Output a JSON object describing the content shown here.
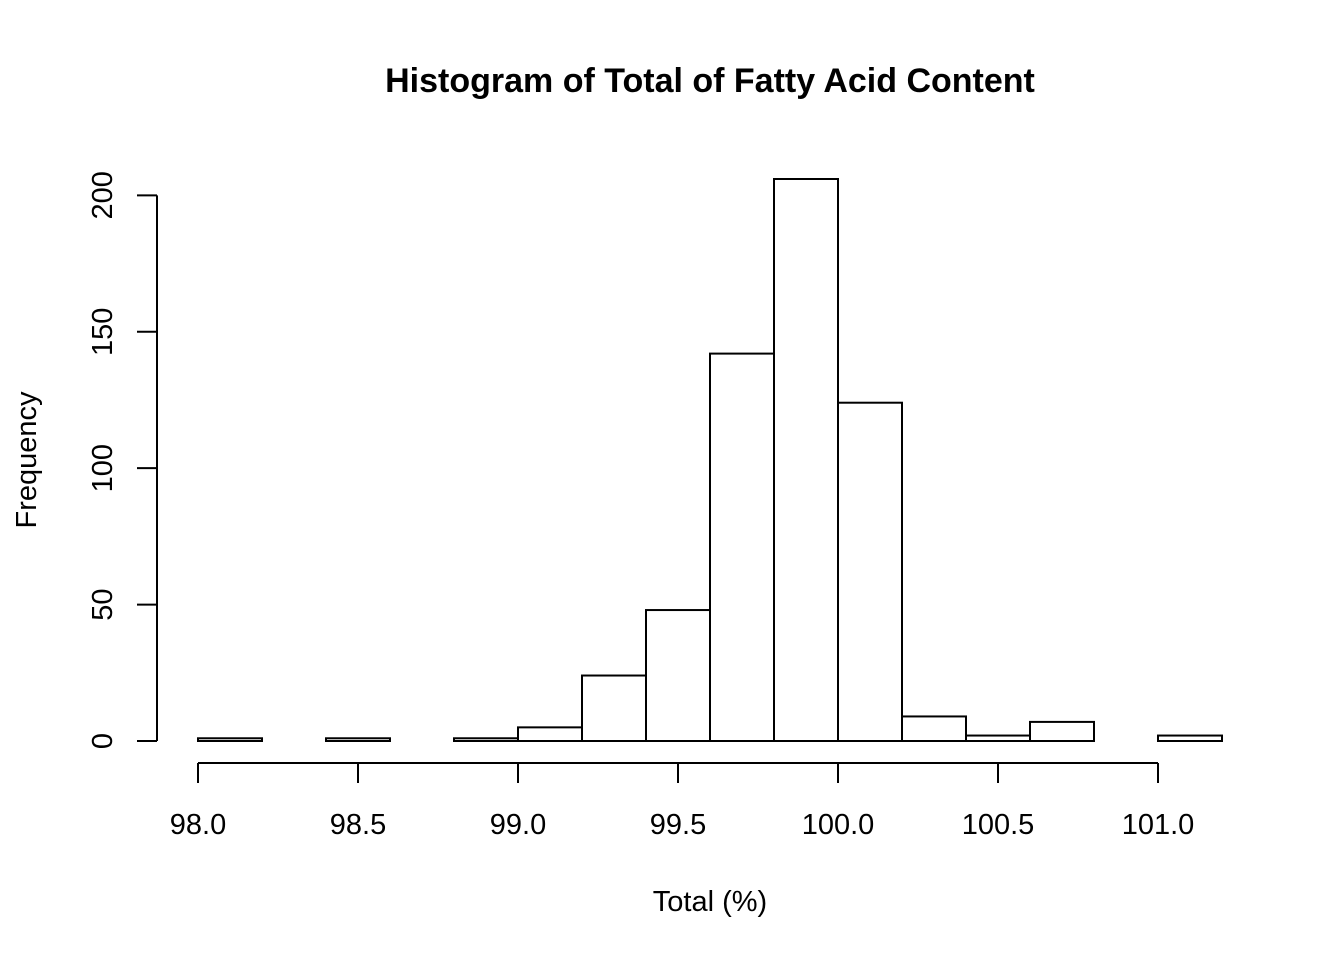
{
  "chart_data": {
    "type": "bar",
    "title": "Histogram of Total of Fatty Acid Content",
    "xlabel": "Total (%)",
    "ylabel": "Frequency",
    "bins": [
      {
        "x0": 98.0,
        "x1": 98.2,
        "count": 1
      },
      {
        "x0": 98.2,
        "x1": 98.4,
        "count": 0
      },
      {
        "x0": 98.4,
        "x1": 98.6,
        "count": 1
      },
      {
        "x0": 98.6,
        "x1": 98.8,
        "count": 0
      },
      {
        "x0": 98.8,
        "x1": 99.0,
        "count": 1
      },
      {
        "x0": 99.0,
        "x1": 99.2,
        "count": 5
      },
      {
        "x0": 99.2,
        "x1": 99.4,
        "count": 24
      },
      {
        "x0": 99.4,
        "x1": 99.6,
        "count": 48
      },
      {
        "x0": 99.6,
        "x1": 99.8,
        "count": 142
      },
      {
        "x0": 99.8,
        "x1": 100.0,
        "count": 206
      },
      {
        "x0": 100.0,
        "x1": 100.2,
        "count": 124
      },
      {
        "x0": 100.2,
        "x1": 100.4,
        "count": 9
      },
      {
        "x0": 100.4,
        "x1": 100.6,
        "count": 2
      },
      {
        "x0": 100.6,
        "x1": 100.8,
        "count": 7
      },
      {
        "x0": 100.8,
        "x1": 101.0,
        "count": 0
      },
      {
        "x0": 101.0,
        "x1": 101.2,
        "count": 2
      }
    ],
    "xlim": [
      98.0,
      101.2
    ],
    "ylim": [
      0,
      206
    ],
    "xticks": [
      98.0,
      98.5,
      99.0,
      99.5,
      100.0,
      100.5,
      101.0
    ],
    "xtick_labels": [
      "98.0",
      "98.5",
      "99.0",
      "99.5",
      "100.0",
      "100.5",
      "101.0"
    ],
    "yticks": [
      0,
      50,
      100,
      150,
      200
    ],
    "ytick_labels": [
      "0",
      "50",
      "100",
      "150",
      "200"
    ],
    "grid": false,
    "legend": "none"
  }
}
